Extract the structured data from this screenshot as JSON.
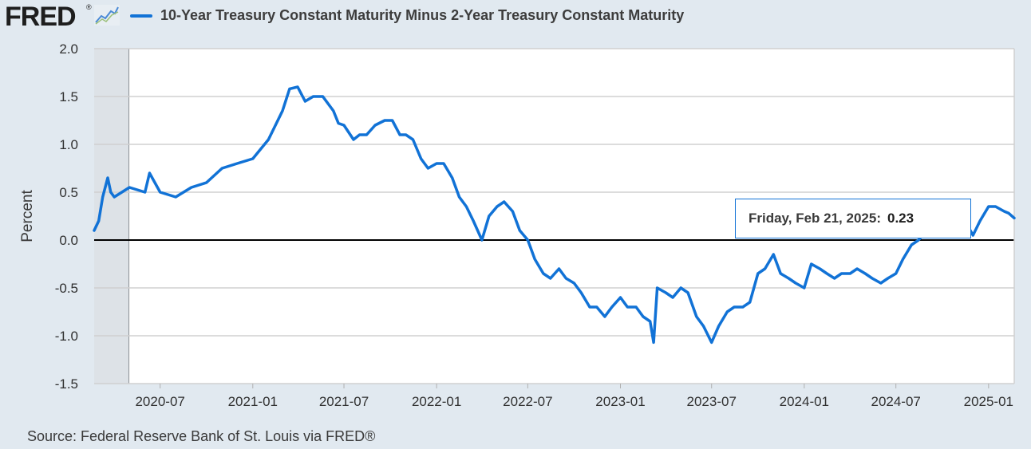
{
  "header": {
    "logo_text": "FRED",
    "logo_mark": "®",
    "legend_label": "10-Year Treasury Constant Maturity Minus 2-Year Treasury Constant Maturity"
  },
  "source_text": "Source: Federal Reserve Bank of St. Louis via FRED®",
  "tooltip": {
    "date_label": "Friday, Feb 21, 2025:",
    "value_label": "0.23"
  },
  "colors": {
    "series": "#1172d6",
    "background": "#e1e9f0",
    "plot_background": "#ffffff",
    "recession_shade": "#dde2e7"
  },
  "chart_data": {
    "type": "line",
    "title": "",
    "xlabel": "",
    "ylabel": "Percent",
    "ylim": [
      -1.5,
      2.0
    ],
    "xlim": [
      "2020-02-21",
      "2025-02-21"
    ],
    "grid": true,
    "y_ticks": [
      2.0,
      1.5,
      1.0,
      0.5,
      0.0,
      -0.5,
      -1.0,
      -1.5
    ],
    "y_tick_labels": [
      "2.0",
      "1.5",
      "1.0",
      "0.5",
      "0.0",
      "-0.5",
      "-1.0",
      "-1.5"
    ],
    "x_ticks": [
      "2020-07-01",
      "2021-01-01",
      "2021-07-01",
      "2022-01-01",
      "2022-07-01",
      "2023-01-01",
      "2023-07-01",
      "2024-01-01",
      "2024-07-01",
      "2025-01-01"
    ],
    "x_tick_labels": [
      "2020-07",
      "2021-01",
      "2021-07",
      "2022-01",
      "2022-07",
      "2023-01",
      "2023-07",
      "2024-01",
      "2024-07",
      "2025-01"
    ],
    "recession": {
      "start": "2020-02-21",
      "end": "2020-04-30"
    },
    "series": [
      {
        "name": "10-Year Treasury Constant Maturity Minus 2-Year Treasury Constant Maturity",
        "x": [
          "2020-02-21",
          "2020-03-01",
          "2020-03-09",
          "2020-03-19",
          "2020-03-25",
          "2020-04-01",
          "2020-05-01",
          "2020-06-01",
          "2020-06-10",
          "2020-07-01",
          "2020-08-01",
          "2020-09-01",
          "2020-10-01",
          "2020-11-01",
          "2020-12-01",
          "2021-01-01",
          "2021-02-01",
          "2021-02-15",
          "2021-03-01",
          "2021-03-15",
          "2021-03-31",
          "2021-04-15",
          "2021-05-01",
          "2021-05-20",
          "2021-06-10",
          "2021-06-20",
          "2021-07-01",
          "2021-07-20",
          "2021-08-01",
          "2021-08-15",
          "2021-09-01",
          "2021-09-20",
          "2021-10-05",
          "2021-10-20",
          "2021-11-01",
          "2021-11-15",
          "2021-12-01",
          "2021-12-15",
          "2022-01-01",
          "2022-01-15",
          "2022-02-01",
          "2022-02-15",
          "2022-03-01",
          "2022-03-15",
          "2022-04-01",
          "2022-04-15",
          "2022-05-01",
          "2022-05-15",
          "2022-06-01",
          "2022-06-15",
          "2022-07-01",
          "2022-07-15",
          "2022-08-01",
          "2022-08-15",
          "2022-09-01",
          "2022-09-15",
          "2022-10-01",
          "2022-10-15",
          "2022-11-01",
          "2022-11-15",
          "2022-12-01",
          "2022-12-15",
          "2023-01-01",
          "2023-01-15",
          "2023-02-01",
          "2023-02-15",
          "2023-03-01",
          "2023-03-08",
          "2023-03-15",
          "2023-04-01",
          "2023-04-15",
          "2023-05-01",
          "2023-05-15",
          "2023-06-01",
          "2023-06-15",
          "2023-07-01",
          "2023-07-15",
          "2023-08-01",
          "2023-08-15",
          "2023-09-01",
          "2023-09-15",
          "2023-10-01",
          "2023-10-15",
          "2023-11-01",
          "2023-11-15",
          "2023-12-01",
          "2023-12-15",
          "2024-01-01",
          "2024-01-15",
          "2024-02-01",
          "2024-02-15",
          "2024-03-01",
          "2024-03-15",
          "2024-04-01",
          "2024-04-15",
          "2024-05-01",
          "2024-05-15",
          "2024-06-01",
          "2024-06-15",
          "2024-07-01",
          "2024-07-15",
          "2024-08-01",
          "2024-08-15",
          "2024-09-01",
          "2024-09-15",
          "2024-10-01",
          "2024-10-15",
          "2024-11-01",
          "2024-11-15",
          "2024-12-01",
          "2024-12-15",
          "2025-01-01",
          "2025-01-15",
          "2025-02-01",
          "2025-02-10",
          "2025-02-21"
        ],
        "y": [
          0.1,
          0.2,
          0.45,
          0.65,
          0.5,
          0.45,
          0.55,
          0.5,
          0.7,
          0.5,
          0.45,
          0.55,
          0.6,
          0.75,
          0.8,
          0.85,
          1.05,
          1.2,
          1.35,
          1.58,
          1.6,
          1.45,
          1.5,
          1.5,
          1.35,
          1.22,
          1.2,
          1.05,
          1.1,
          1.1,
          1.2,
          1.25,
          1.25,
          1.1,
          1.1,
          1.05,
          0.85,
          0.75,
          0.8,
          0.8,
          0.65,
          0.45,
          0.35,
          0.2,
          0.0,
          0.25,
          0.35,
          0.4,
          0.3,
          0.1,
          0.0,
          -0.2,
          -0.35,
          -0.4,
          -0.3,
          -0.4,
          -0.45,
          -0.55,
          -0.7,
          -0.7,
          -0.8,
          -0.7,
          -0.6,
          -0.7,
          -0.7,
          -0.8,
          -0.85,
          -1.07,
          -0.5,
          -0.55,
          -0.6,
          -0.5,
          -0.55,
          -0.8,
          -0.9,
          -1.07,
          -0.9,
          -0.75,
          -0.7,
          -0.7,
          -0.65,
          -0.35,
          -0.3,
          -0.15,
          -0.35,
          -0.4,
          -0.45,
          -0.5,
          -0.25,
          -0.3,
          -0.35,
          -0.4,
          -0.35,
          -0.35,
          -0.3,
          -0.35,
          -0.4,
          -0.45,
          -0.4,
          -0.35,
          -0.2,
          -0.05,
          0.0,
          0.1,
          0.15,
          0.15,
          0.15,
          0.1,
          0.2,
          0.05,
          0.2,
          0.35,
          0.35,
          0.3,
          0.28,
          0.23
        ]
      }
    ]
  }
}
